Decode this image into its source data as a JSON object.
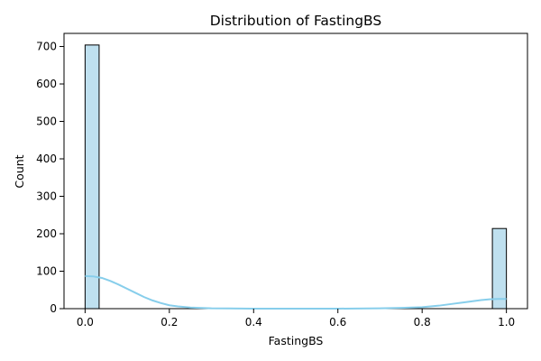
{
  "chart_data": {
    "type": "bar",
    "title": "Distribution of FastingBS",
    "xlabel": "FastingBS",
    "ylabel": "Count",
    "xlim": [
      -0.05,
      1.05
    ],
    "ylim": [
      0,
      735
    ],
    "xticks": [
      0.0,
      0.2,
      0.4,
      0.6,
      0.8,
      1.0
    ],
    "xtick_labels": [
      "0.0",
      "0.2",
      "0.4",
      "0.6",
      "0.8",
      "1.0"
    ],
    "yticks": [
      0,
      100,
      200,
      300,
      400,
      500,
      600,
      700
    ],
    "ytick_labels": [
      "0",
      "100",
      "200",
      "300",
      "400",
      "500",
      "600",
      "700"
    ],
    "grid": false,
    "bars": [
      {
        "x0": 0.0,
        "x1": 0.0333,
        "count": 704
      },
      {
        "x0": 0.9667,
        "x1": 1.0,
        "count": 214
      }
    ],
    "kde": {
      "x": [
        0.0,
        0.02,
        0.04,
        0.06,
        0.08,
        0.1,
        0.12,
        0.14,
        0.16,
        0.18,
        0.2,
        0.22,
        0.25,
        0.3,
        0.4,
        0.5,
        0.6,
        0.7,
        0.75,
        0.8,
        0.82,
        0.84,
        0.86,
        0.88,
        0.9,
        0.92,
        0.94,
        0.96,
        0.98,
        1.0
      ],
      "y": [
        87,
        86,
        82,
        74,
        64,
        53,
        42,
        31,
        22,
        15,
        9,
        6,
        3,
        1,
        0,
        0,
        0,
        1,
        2,
        4,
        6,
        8,
        11,
        14,
        17,
        20,
        23,
        25,
        26,
        26
      ]
    },
    "colors": {
      "bar_fill": "#bfe0ef",
      "bar_edge": "#000000",
      "kde_line": "#87ceeb"
    }
  }
}
